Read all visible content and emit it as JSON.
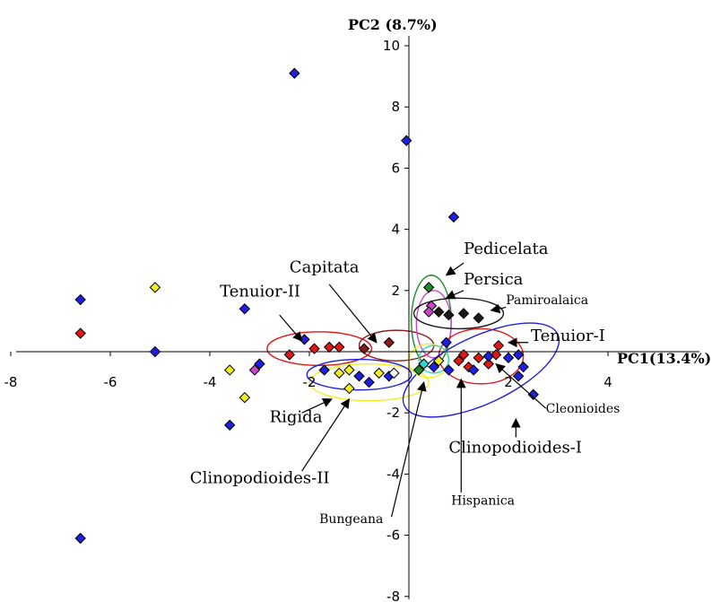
{
  "chart_data": {
    "type": "scatter",
    "xlabel": "PC1(13.4%)",
    "ylabel": "PC2 (8.7%)",
    "xlim": [
      -8,
      4
    ],
    "ylim": [
      -8,
      10
    ],
    "x_ticks": [
      -8,
      -6,
      -4,
      -2,
      2,
      4
    ],
    "y_ticks": [
      10,
      8,
      6,
      4,
      2,
      -2,
      -4,
      -6,
      -8
    ],
    "grid": false,
    "legend": "none",
    "colors": {
      "blue": "#1f1fe0",
      "red": "#e01818",
      "yellow": "#f2ee22",
      "green": "#1f8a2a",
      "black": "#1a1a1a",
      "magenta": "#cc44cc",
      "darkred": "#8b1a1a",
      "cyan": "#28d6d6"
    },
    "points": [
      {
        "x": -6.6,
        "y": 1.7,
        "color": "blue"
      },
      {
        "x": -6.6,
        "y": 0.6,
        "color": "red"
      },
      {
        "x": -6.6,
        "y": -6.1,
        "color": "blue"
      },
      {
        "x": -5.1,
        "y": 2.1,
        "color": "yellow"
      },
      {
        "x": -5.1,
        "y": 0.0,
        "color": "blue"
      },
      {
        "x": -3.6,
        "y": -0.6,
        "color": "yellow"
      },
      {
        "x": -3.6,
        "y": -2.4,
        "color": "blue"
      },
      {
        "x": -3.3,
        "y": 1.4,
        "color": "blue"
      },
      {
        "x": -3.3,
        "y": -1.5,
        "color": "yellow"
      },
      {
        "x": -3.1,
        "y": -0.6,
        "color": "magenta"
      },
      {
        "x": -3.0,
        "y": -0.4,
        "color": "blue"
      },
      {
        "x": -2.3,
        "y": 9.1,
        "color": "blue"
      },
      {
        "x": -2.1,
        "y": 0.4,
        "color": "blue"
      },
      {
        "x": -2.4,
        "y": -0.1,
        "color": "red"
      },
      {
        "x": -1.9,
        "y": 0.1,
        "color": "red"
      },
      {
        "x": -1.6,
        "y": 0.15,
        "color": "red"
      },
      {
        "x": -1.4,
        "y": 0.15,
        "color": "red"
      },
      {
        "x": -1.7,
        "y": -0.6,
        "color": "blue"
      },
      {
        "x": -1.4,
        "y": -0.7,
        "color": "yellow"
      },
      {
        "x": -1.2,
        "y": -1.2,
        "color": "yellow"
      },
      {
        "x": -1.2,
        "y": -0.6,
        "color": "yellow"
      },
      {
        "x": -1.0,
        "y": -0.8,
        "color": "blue"
      },
      {
        "x": -0.8,
        "y": -1.0,
        "color": "blue"
      },
      {
        "x": -0.6,
        "y": -0.7,
        "color": "yellow"
      },
      {
        "x": -0.4,
        "y": -0.8,
        "color": "blue"
      },
      {
        "x": -0.3,
        "y": -0.7,
        "color": "white"
      },
      {
        "x": -0.9,
        "y": 0.1,
        "color": "darkred"
      },
      {
        "x": -0.4,
        "y": 0.3,
        "color": "darkred"
      },
      {
        "x": -0.05,
        "y": 6.9,
        "color": "blue"
      },
      {
        "x": 0.9,
        "y": 4.4,
        "color": "blue"
      },
      {
        "x": 0.4,
        "y": 2.1,
        "color": "green"
      },
      {
        "x": 0.45,
        "y": 1.5,
        "color": "magenta"
      },
      {
        "x": 0.6,
        "y": 1.3,
        "color": "black"
      },
      {
        "x": 0.4,
        "y": 1.3,
        "color": "magenta"
      },
      {
        "x": 0.8,
        "y": 1.2,
        "color": "black"
      },
      {
        "x": 1.1,
        "y": 1.25,
        "color": "black"
      },
      {
        "x": 1.4,
        "y": 1.1,
        "color": "black"
      },
      {
        "x": 0.75,
        "y": 0.3,
        "color": "blue"
      },
      {
        "x": 0.2,
        "y": -0.6,
        "color": "green"
      },
      {
        "x": 0.3,
        "y": -0.4,
        "color": "cyan"
      },
      {
        "x": 0.5,
        "y": -0.5,
        "color": "blue"
      },
      {
        "x": 0.6,
        "y": -0.3,
        "color": "yellow"
      },
      {
        "x": 0.8,
        "y": -0.6,
        "color": "blue"
      },
      {
        "x": 1.0,
        "y": -0.3,
        "color": "red"
      },
      {
        "x": 1.2,
        "y": -0.5,
        "color": "red"
      },
      {
        "x": 1.1,
        "y": -0.1,
        "color": "red"
      },
      {
        "x": 1.4,
        "y": -0.2,
        "color": "red"
      },
      {
        "x": 1.6,
        "y": -0.4,
        "color": "red"
      },
      {
        "x": 1.8,
        "y": 0.2,
        "color": "red"
      },
      {
        "x": 1.75,
        "y": -0.1,
        "color": "red"
      },
      {
        "x": 1.6,
        "y": -0.15,
        "color": "blue"
      },
      {
        "x": 2.0,
        "y": -0.2,
        "color": "blue"
      },
      {
        "x": 2.2,
        "y": -0.1,
        "color": "blue"
      },
      {
        "x": 2.3,
        "y": -0.5,
        "color": "blue"
      },
      {
        "x": 2.2,
        "y": -0.8,
        "color": "blue"
      },
      {
        "x": 1.3,
        "y": -0.6,
        "color": "blue"
      },
      {
        "x": 2.5,
        "y": -1.4,
        "color": "blue"
      }
    ],
    "ellipses": [
      {
        "label": "Tenuior-II",
        "cx": -1.8,
        "cy": 0.1,
        "rx": 1.05,
        "ry": 0.55,
        "angle": 0,
        "color": "red"
      },
      {
        "label": "Capitata",
        "cx": -0.25,
        "cy": 0.2,
        "rx": 0.75,
        "ry": 0.5,
        "angle": 0,
        "color": "darkred"
      },
      {
        "label": "Rigida",
        "cx": -0.8,
        "cy": -1.0,
        "rx": 1.2,
        "ry": 0.6,
        "angle": 0,
        "color": "yellow"
      },
      {
        "label": "Clinopodioides-II",
        "cx": -1.0,
        "cy": -0.75,
        "rx": 1.05,
        "ry": 0.5,
        "angle": 0,
        "color": "blue"
      },
      {
        "label": "Pedicelata",
        "cx": 0.45,
        "cy": 1.0,
        "rx": 0.4,
        "ry": 1.5,
        "angle": 0,
        "color": "green"
      },
      {
        "label": "Persica",
        "cx": 0.5,
        "cy": 0.9,
        "rx": 0.35,
        "ry": 1.1,
        "angle": 0,
        "color": "magenta"
      },
      {
        "label": "Pamiroalaica",
        "cx": 1.0,
        "cy": 1.25,
        "rx": 0.9,
        "ry": 0.5,
        "angle": 0,
        "color": "black"
      },
      {
        "label": "Tenuior-I",
        "cx": 1.45,
        "cy": -0.15,
        "rx": 0.85,
        "ry": 0.9,
        "angle": 0,
        "color": "red"
      },
      {
        "label": "Clinopodioides-I",
        "cx": 1.45,
        "cy": -0.6,
        "rx": 1.7,
        "ry": 1.1,
        "angle": 25,
        "color": "blue"
      },
      {
        "label": "Bungeana",
        "cx": 0.4,
        "cy": -0.3,
        "rx": 0.4,
        "ry": 0.55,
        "angle": 0,
        "color": "yellow"
      },
      {
        "label": "Hispanica",
        "cx": 0.5,
        "cy": -0.25,
        "rx": 0.3,
        "ry": 0.45,
        "angle": 0,
        "color": "cyan"
      }
    ],
    "annotations": [
      {
        "text": "Tenuior-II",
        "x": -3.8,
        "y": 1.8,
        "size": "large",
        "ax": -2.15,
        "ay": 0.35,
        "tx": -2.6,
        "ty": 1.2
      },
      {
        "text": "Capitata",
        "x": -2.4,
        "y": 2.6,
        "size": "large",
        "ax": -0.65,
        "ay": 0.3,
        "tx": -1.6,
        "ty": 2.2
      },
      {
        "text": "Rigida",
        "x": -2.8,
        "y": -2.3,
        "size": "large",
        "ax": -1.55,
        "ay": -1.55,
        "tx": -2.15,
        "ty": -2.0
      },
      {
        "text": "Clinopodioides-II",
        "x": -4.4,
        "y": -4.3,
        "size": "large",
        "ax": -1.2,
        "ay": -1.55,
        "tx": -2.15,
        "ty": -3.9
      },
      {
        "text": "Pedicelata",
        "x": 1.1,
        "y": 3.2,
        "size": "large",
        "ax": 0.75,
        "ay": 2.5,
        "tx": 1.1,
        "ty": 2.9
      },
      {
        "text": "Persica",
        "x": 1.1,
        "y": 2.2,
        "size": "large",
        "ax": 0.75,
        "ay": 1.75,
        "tx": 1.1,
        "ty": 2.0
      },
      {
        "text": "Pamiroalaica",
        "x": 1.95,
        "y": 1.55,
        "size": "small",
        "ax": 1.65,
        "ay": 1.35,
        "tx": 1.95,
        "ty": 1.45
      },
      {
        "text": "Tenuior-I",
        "x": 2.45,
        "y": 0.35,
        "size": "large",
        "ax": 2.0,
        "ay": 0.3,
        "tx": 2.4,
        "ty": 0.3
      },
      {
        "text": "Cleonioides",
        "x": 2.75,
        "y": -2.0,
        "size": "small",
        "ax": 1.75,
        "ay": -0.4,
        "tx": 2.75,
        "ty": -1.85
      },
      {
        "text": "Clinopodioides-I",
        "x": 0.8,
        "y": -3.3,
        "size": "large",
        "ax": 2.15,
        "ay": -2.2,
        "tx": 2.15,
        "ty": -2.8
      },
      {
        "text": "Hispanica",
        "x": 0.85,
        "y": -5.0,
        "size": "small",
        "ax": 1.05,
        "ay": -0.9,
        "tx": 1.05,
        "ty": -4.6
      },
      {
        "text": "Bungeana",
        "x": -1.8,
        "y": -5.6,
        "size": "small",
        "ax": 0.3,
        "ay": -1.0,
        "tx": -0.35,
        "ty": -5.4
      }
    ]
  }
}
